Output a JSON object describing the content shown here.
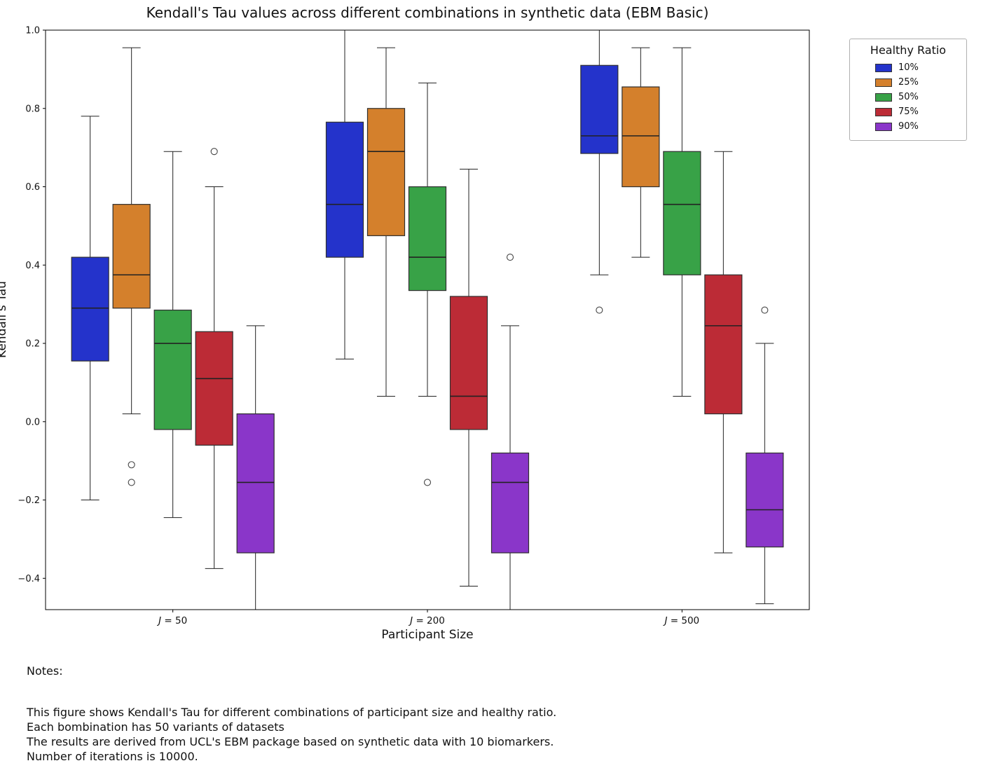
{
  "page": {
    "background": "#ffffff"
  },
  "notes": {
    "heading": "Notes:",
    "lines": [
      "This figure shows Kendall's Tau for different combinations of participant size and healthy ratio.",
      "Each bombination has 50 variants of datasets",
      "The results are derived from UCL's EBM package based on synthetic data with 10 biomarkers.",
      "Number of iterations is 10000."
    ]
  },
  "chart_data": {
    "type": "boxplot",
    "title": "Kendall's Tau values across different combinations in synthetic data (EBM Basic)",
    "xlabel": "Participant Size",
    "ylabel": "Kendall's Tau",
    "ylim": [
      -0.48,
      1.0
    ],
    "yticks": [
      1.0,
      0.8,
      0.6,
      0.4,
      0.2,
      0.0,
      -0.2,
      -0.4
    ],
    "grid": false,
    "groups": [
      "J = 50",
      "J = 200",
      "J = 500"
    ],
    "legend": {
      "title": "Healthy Ratio",
      "position": "outside upper right"
    },
    "series": [
      {
        "name": "10%",
        "color": "#2433cb",
        "boxes": [
          {
            "whislo": -0.2,
            "q1": 0.155,
            "med": 0.29,
            "q3": 0.42,
            "whishi": 0.78,
            "outliers": []
          },
          {
            "whislo": 0.16,
            "q1": 0.42,
            "med": 0.555,
            "q3": 0.765,
            "whishi": 1.0,
            "outliers": []
          },
          {
            "whislo": 0.375,
            "q1": 0.685,
            "med": 0.73,
            "q3": 0.91,
            "whishi": 1.0,
            "outliers": [
              0.285
            ]
          }
        ]
      },
      {
        "name": "25%",
        "color": "#d4802c",
        "boxes": [
          {
            "whislo": 0.02,
            "q1": 0.29,
            "med": 0.375,
            "q3": 0.555,
            "whishi": 0.955,
            "outliers": [
              -0.11,
              -0.155
            ]
          },
          {
            "whislo": 0.065,
            "q1": 0.475,
            "med": 0.69,
            "q3": 0.8,
            "whishi": 0.955,
            "outliers": []
          },
          {
            "whislo": 0.42,
            "q1": 0.6,
            "med": 0.73,
            "q3": 0.855,
            "whishi": 0.955,
            "outliers": []
          }
        ]
      },
      {
        "name": "50%",
        "color": "#38a247",
        "boxes": [
          {
            "whislo": -0.245,
            "q1": -0.02,
            "med": 0.2,
            "q3": 0.285,
            "whishi": 0.69,
            "outliers": []
          },
          {
            "whislo": 0.065,
            "q1": 0.335,
            "med": 0.42,
            "q3": 0.6,
            "whishi": 0.865,
            "outliers": [
              -0.155
            ]
          },
          {
            "whislo": 0.065,
            "q1": 0.375,
            "med": 0.555,
            "q3": 0.69,
            "whishi": 0.955,
            "outliers": []
          }
        ]
      },
      {
        "name": "75%",
        "color": "#bc2b36",
        "boxes": [
          {
            "whislo": -0.375,
            "q1": -0.06,
            "med": 0.11,
            "q3": 0.23,
            "whishi": 0.6,
            "outliers": [
              0.69
            ]
          },
          {
            "whislo": -0.42,
            "q1": -0.02,
            "med": 0.065,
            "q3": 0.32,
            "whishi": 0.645,
            "outliers": []
          },
          {
            "whislo": -0.335,
            "q1": 0.02,
            "med": 0.245,
            "q3": 0.375,
            "whishi": 0.69,
            "outliers": []
          }
        ]
      },
      {
        "name": "90%",
        "color": "#8a36c9",
        "boxes": [
          {
            "whislo": -0.52,
            "q1": -0.335,
            "med": -0.155,
            "q3": 0.02,
            "whishi": 0.245,
            "outliers": []
          },
          {
            "whislo": -0.52,
            "q1": -0.335,
            "med": -0.155,
            "q3": -0.08,
            "whishi": 0.245,
            "outliers": [
              0.42
            ]
          },
          {
            "whislo": -0.465,
            "q1": -0.32,
            "med": -0.225,
            "q3": -0.08,
            "whishi": 0.2,
            "outliers": [
              0.285
            ]
          }
        ]
      }
    ]
  }
}
